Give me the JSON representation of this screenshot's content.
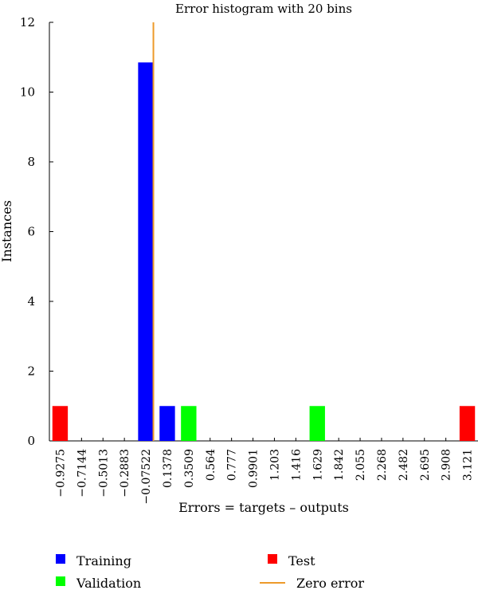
{
  "chart_data": {
    "type": "bar",
    "title": "Error histogram with 20 bins",
    "xlabel": "Errors = targets – outputs",
    "ylabel": "Instances",
    "ylim": [
      0,
      12
    ],
    "yticks": [
      "0",
      "2",
      "4",
      "6",
      "8",
      "10",
      "12"
    ],
    "categories": [
      "−0.9275",
      "−0.7144",
      "−0.5013",
      "−0.2883",
      "−0.07522",
      "0.1378",
      "0.3509",
      "0.564",
      "0.777",
      "0.9901",
      "1.203",
      "1.416",
      "1.629",
      "1.842",
      "2.055",
      "2.268",
      "2.482",
      "2.695",
      "2.908",
      "3.121"
    ],
    "series": [
      {
        "name": "Training",
        "color": "#0000ff",
        "values": [
          0,
          0,
          0,
          0,
          10.85,
          1,
          0,
          0,
          0,
          0,
          0,
          0,
          0,
          0,
          0,
          0,
          0,
          0,
          0,
          0
        ]
      },
      {
        "name": "Validation",
        "color": "#00ff00",
        "values": [
          0,
          0,
          0,
          0,
          0,
          0,
          1,
          0,
          0,
          0,
          0,
          0,
          1,
          0,
          0,
          0,
          0,
          0,
          0,
          0
        ]
      },
      {
        "name": "Test",
        "color": "#ff0000",
        "values": [
          1,
          0,
          0,
          0,
          0,
          0,
          0,
          0,
          0,
          0,
          0,
          0,
          0,
          0,
          0,
          0,
          0,
          0,
          0,
          1
        ]
      }
    ],
    "zero_error": {
      "label": "Zero error",
      "color": "#ed9a2a",
      "x": 0
    },
    "legend_position": "bottom",
    "grid": false
  }
}
